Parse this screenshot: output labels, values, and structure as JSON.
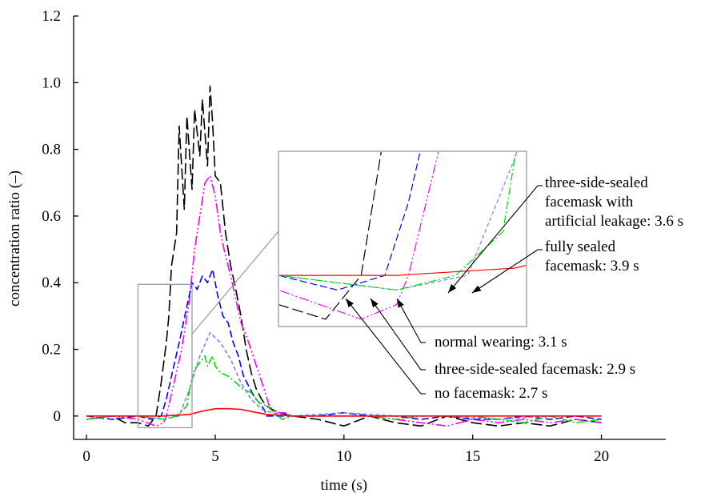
{
  "chart_data": {
    "type": "line",
    "xlabel": "time (s)",
    "ylabel": "concentration ratio (–)",
    "xlim": [
      -0.5,
      22.5
    ],
    "ylim": [
      -0.07,
      1.2
    ],
    "x_ticks": [
      0,
      5,
      10,
      15,
      20
    ],
    "y_ticks": [
      0,
      0.2,
      0.4,
      0.6,
      0.8,
      1.0,
      1.2
    ],
    "x_tick_labels": [
      "0",
      "5",
      "10",
      "15",
      "20"
    ],
    "y_tick_labels": [
      "0",
      "0.2",
      "0.4",
      "0.6",
      "0.8",
      "1.0",
      "1.2"
    ],
    "grid": false,
    "legend": "none",
    "series": [
      {
        "key": "no-facemask",
        "color": "#000000",
        "dash": "14 5",
        "x": [
          0,
          1,
          1.5,
          2,
          2.4,
          2.7,
          2.9,
          3.1,
          3.2,
          3.3,
          3.5,
          3.6,
          3.8,
          3.9,
          4.1,
          4.2,
          4.4,
          4.5,
          4.7,
          4.8,
          4.9,
          5.0,
          5.2,
          5.4,
          5.6,
          5.8,
          6.0,
          6.2,
          6.4,
          6.6,
          6.8,
          7.0,
          7.2,
          7.5,
          8,
          9,
          10,
          11,
          12,
          13,
          14,
          15,
          16,
          17,
          18,
          19,
          20
        ],
        "y": [
          -0.01,
          0.0,
          -0.02,
          -0.02,
          -0.03,
          0.0,
          0.1,
          0.22,
          0.3,
          0.45,
          0.55,
          0.87,
          0.62,
          0.9,
          0.68,
          0.92,
          0.78,
          0.95,
          0.75,
          0.99,
          0.88,
          0.72,
          0.7,
          0.55,
          0.45,
          0.38,
          0.3,
          0.2,
          0.13,
          0.08,
          0.05,
          0.03,
          0.02,
          0.01,
          0.0,
          -0.01,
          -0.03,
          0.0,
          -0.02,
          -0.03,
          0.0,
          -0.02,
          -0.03,
          -0.02,
          -0.03,
          -0.01,
          -0.02
        ]
      },
      {
        "key": "normal-wearing",
        "color": "#ff00ff",
        "dash": "12 3 2 3 2 3",
        "x": [
          0,
          1,
          2,
          2.7,
          3.0,
          3.1,
          3.4,
          3.7,
          4.0,
          4.2,
          4.4,
          4.6,
          4.8,
          5.0,
          5.2,
          5.4,
          5.6,
          5.8,
          6.0,
          6.3,
          6.6,
          6.9,
          7.1,
          7.4,
          7.7,
          8,
          9,
          10,
          11,
          12,
          13,
          14,
          15,
          16,
          17,
          18,
          19,
          20
        ],
        "y": [
          -0.01,
          0.0,
          -0.01,
          -0.03,
          -0.02,
          0.0,
          0.1,
          0.2,
          0.35,
          0.5,
          0.6,
          0.7,
          0.72,
          0.66,
          0.55,
          0.48,
          0.42,
          0.35,
          0.28,
          0.22,
          0.15,
          0.08,
          0.03,
          0.01,
          0.01,
          0.0,
          0.0,
          0.0,
          0.0,
          -0.01,
          -0.02,
          -0.03,
          -0.01,
          -0.02,
          -0.01,
          -0.02,
          -0.01,
          -0.02
        ]
      },
      {
        "key": "three-side-sealed",
        "color": "#0000ff",
        "dash": "9 4",
        "x": [
          0,
          1,
          2,
          2.5,
          2.9,
          3.1,
          3.3,
          3.6,
          3.9,
          4.1,
          4.3,
          4.5,
          4.7,
          4.9,
          5.1,
          5.3,
          5.5,
          5.7,
          5.9,
          6.1,
          6.3,
          6.5,
          6.7,
          6.9,
          7.0,
          8,
          9,
          10,
          11,
          12,
          13,
          14,
          15,
          16,
          17,
          18,
          19,
          20
        ],
        "y": [
          0.0,
          -0.01,
          0.0,
          -0.01,
          0.0,
          0.05,
          0.12,
          0.22,
          0.33,
          0.4,
          0.38,
          0.42,
          0.4,
          0.44,
          0.36,
          0.3,
          0.28,
          0.22,
          0.18,
          0.12,
          0.09,
          0.06,
          0.04,
          0.02,
          0.0,
          0.0,
          0.0,
          0.01,
          0.0,
          0.0,
          -0.01,
          0.0,
          -0.01,
          -0.01,
          0.0,
          -0.01,
          0.0,
          -0.01
        ]
      },
      {
        "key": "three-side-sealed-leakage",
        "color": "#8080ff",
        "dash": "5 3",
        "x": [
          0,
          2,
          3,
          3.6,
          4.0,
          4.4,
          4.8,
          5.2,
          5.6,
          6.0,
          6.4,
          6.8,
          7.2,
          8,
          10,
          12,
          14,
          16,
          18,
          20
        ],
        "y": [
          0.0,
          0.0,
          -0.01,
          0.0,
          0.08,
          0.18,
          0.25,
          0.22,
          0.17,
          0.1,
          0.05,
          0.02,
          0.01,
          0.0,
          0.01,
          0.0,
          0.0,
          -0.01,
          0.0,
          0.0
        ]
      },
      {
        "key": "fully-sealed",
        "color": "#00dd00",
        "dash": "10 3 2 3",
        "x": [
          0,
          1,
          2,
          3,
          3.5,
          3.9,
          4.0,
          4.2,
          4.4,
          4.6,
          4.7,
          4.9,
          5.0,
          5.2,
          5.5,
          5.8,
          6.1,
          6.4,
          6.7,
          7.0,
          7.3,
          7.6,
          8,
          9,
          10,
          11,
          12,
          13,
          14,
          15,
          16,
          17,
          18,
          19,
          20
        ],
        "y": [
          -0.01,
          0.0,
          0.0,
          -0.01,
          0.0,
          0.03,
          0.08,
          0.14,
          0.16,
          0.18,
          0.15,
          0.18,
          0.15,
          0.13,
          0.12,
          0.1,
          0.08,
          0.07,
          0.04,
          0.03,
          0.01,
          -0.01,
          0.0,
          0.0,
          0.0,
          0.0,
          -0.01,
          0.0,
          0.0,
          0.0,
          -0.01,
          -0.02,
          0.0,
          -0.02,
          -0.01
        ]
      },
      {
        "key": "solid-red",
        "color": "#ff0000",
        "dash": "",
        "x": [
          0,
          2,
          3,
          4,
          4.5,
          5,
          5.5,
          6,
          6.5,
          7,
          8,
          10,
          12,
          15,
          20
        ],
        "y": [
          0.0,
          0.0,
          0.0,
          0.005,
          0.015,
          0.022,
          0.022,
          0.02,
          0.012,
          0.005,
          0.0,
          0.0,
          0.0,
          0.0,
          0.0
        ]
      }
    ],
    "zoom_region": {
      "x": [
        2.0,
        4.1
      ],
      "y": [
        -0.035,
        0.395
      ]
    },
    "inset_xlim": [
      2.0,
      4.1
    ],
    "inset_ylim": [
      -0.035,
      0.085
    ],
    "annotations": [
      {
        "key": "leakage",
        "lines": [
          "three-side-sealed",
          "facemask with",
          "artificial leakage: 3.6 s"
        ],
        "target_time": 3.6
      },
      {
        "key": "fully",
        "lines": [
          "fully sealed",
          "facemask: 3.9 s"
        ],
        "target_time": 3.9
      },
      {
        "key": "normal",
        "lines": [
          "normal wearing: 3.1 s"
        ],
        "target_time": 3.1
      },
      {
        "key": "threeside",
        "lines": [
          "three-side-sealed facemask: 2.9 s"
        ],
        "target_time": 2.9
      },
      {
        "key": "nofacemask",
        "lines": [
          "no facemask: 2.7 s"
        ],
        "target_time": 2.7
      }
    ]
  }
}
